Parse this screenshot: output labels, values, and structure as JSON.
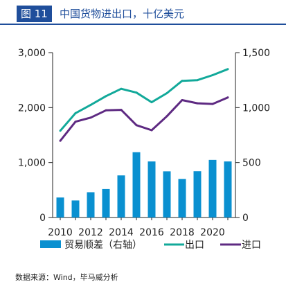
{
  "figure": {
    "number": "图 11",
    "title": "中国货物进出口，十亿美元"
  },
  "source": "数据来源：Wind，毕马威分析",
  "colors": {
    "header": "#1f4e9b",
    "bars": "#0a90d0",
    "export": "#12a99a",
    "import": "#5e2a82"
  },
  "chart_data": {
    "type": "bar+line",
    "x": [
      2010,
      2011,
      2012,
      2013,
      2014,
      2015,
      2016,
      2017,
      2018,
      2019,
      2020,
      2021
    ],
    "xticks": [
      "2010",
      "2012",
      "2014",
      "2016",
      "2018",
      "2020"
    ],
    "left_axis": {
      "ylim": [
        0,
        3000
      ],
      "ticks": [
        "0",
        "1,000",
        "2,000",
        "3,000"
      ]
    },
    "right_axis": {
      "ylim": [
        0,
        1500
      ],
      "ticks": [
        "0",
        "500",
        "1,000",
        "1,500"
      ]
    },
    "series": [
      {
        "name": "贸易顺差（右轴）",
        "type": "bar",
        "axis": "right",
        "values": [
          182,
          155,
          230,
          259,
          383,
          594,
          510,
          420,
          351,
          421,
          524,
          510
        ]
      },
      {
        "name": "出口",
        "type": "line",
        "axis": "left",
        "values": [
          1578,
          1898,
          2049,
          2209,
          2342,
          2273,
          2098,
          2263,
          2487,
          2499,
          2590,
          2700
        ]
      },
      {
        "name": "进口",
        "type": "line",
        "axis": "left",
        "values": [
          1396,
          1743,
          1818,
          1950,
          1959,
          1680,
          1588,
          1843,
          2136,
          2078,
          2066,
          2185
        ]
      }
    ],
    "legend": [
      "贸易顺差（右轴）",
      "出口",
      "进口"
    ],
    "legend_position": "bottom"
  }
}
